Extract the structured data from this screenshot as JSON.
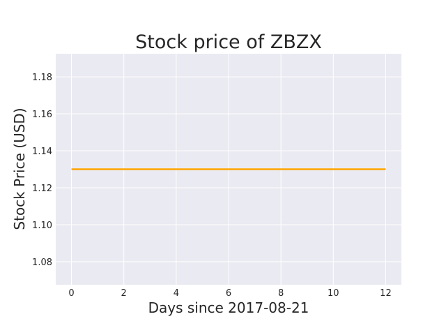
{
  "chart_data": {
    "type": "line",
    "title": "Stock price of ZBZX",
    "xlabel": "Days since 2017-08-21",
    "ylabel": "Stock Price (USD)",
    "xlim": [
      -0.6,
      12.6
    ],
    "ylim": [
      1.0675,
      1.1925
    ],
    "xticks": [
      0,
      2,
      4,
      6,
      8,
      10,
      12
    ],
    "yticks": [
      1.08,
      1.1,
      1.12,
      1.14,
      1.16,
      1.18
    ],
    "xtick_labels": [
      "0",
      "2",
      "4",
      "6",
      "8",
      "10",
      "12"
    ],
    "ytick_labels": [
      "1.08",
      "1.10",
      "1.12",
      "1.14",
      "1.16",
      "1.18"
    ],
    "grid": true,
    "background_color": "#EAEAF2",
    "grid_color": "#FFFFFF",
    "series": [
      {
        "color": "#FFA500",
        "x": [
          0,
          1,
          2,
          3,
          4,
          5,
          6,
          7,
          8,
          9,
          10,
          11,
          12
        ],
        "y": [
          1.13,
          1.13,
          1.13,
          1.13,
          1.13,
          1.13,
          1.13,
          1.13,
          1.13,
          1.13,
          1.13,
          1.13,
          1.13
        ]
      }
    ]
  }
}
